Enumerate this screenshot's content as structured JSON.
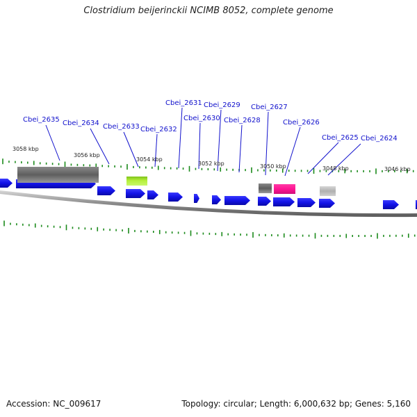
{
  "title": "Clostridium beijerinckii NCIMB 8052, complete genome",
  "accession": "Accession: NC_009617",
  "summary": "Topology: circular; Length: 6,000,632 bp; Genes: 5,160",
  "colors": {
    "cds": "#1212e6",
    "rna_dark": "#666666",
    "rna_light": "#b8b8b8",
    "highlight_green": "#a6e22e",
    "highlight_pink": "#ff1493",
    "label": "#1010cc",
    "tick": "#1b8a1b",
    "backbone": "#9a9a9a"
  },
  "gene_labels": [
    "Cbei_2635",
    "Cbei_2634",
    "Cbei_2633",
    "Cbei_2632",
    "Cbei_2631",
    "Cbei_2630",
    "Cbei_2629",
    "Cbei_2628",
    "Cbei_2627",
    "Cbei_2626",
    "Cbei_2625",
    "Cbei_2624"
  ],
  "position_labels": [
    "3058 kbp",
    "3056 kbp",
    "3054 kbp",
    "3052 kbp",
    "3050 kbp",
    "3048 kbp",
    "3046 kbp"
  ]
}
